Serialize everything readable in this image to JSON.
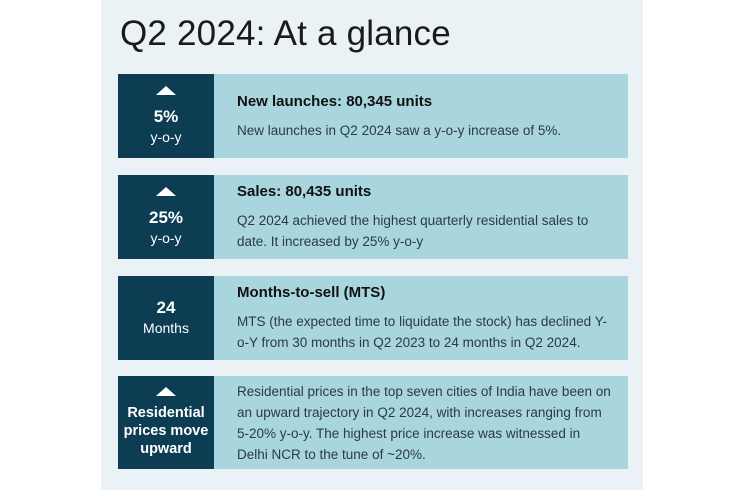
{
  "title": "Q2 2024: At a glance",
  "cards": [
    {
      "metric_value": "5%",
      "metric_unit": "y-o-y",
      "arrow_icon": "triangle-up-icon",
      "heading": "New launches: 80,345 units",
      "body": "New launches in Q2 2024 saw a y-o-y increase of 5%."
    },
    {
      "metric_value": "25%",
      "metric_unit": "y-o-y",
      "arrow_icon": "triangle-up-icon",
      "heading": "Sales: 80,435 units",
      "body": "Q2 2024 achieved the highest quarterly residential sales to date. It increased by 25% y-o-y"
    },
    {
      "metric_value": "24",
      "metric_unit": "Months",
      "heading": "Months-to-sell (MTS)",
      "body": "MTS (the expected time to liquidate the stock) has declined Y-o-Y from 30 months in Q2 2023 to 24 months in Q2 2024."
    },
    {
      "metric_text": "Residential prices move upward",
      "arrow_icon": "triangle-up-icon",
      "body": "Residential prices in the top seven cities of India have been on an upward trajectory in Q2 2024, with increases ranging from 5-20% y-o-y. The highest price increase was witnessed in Delhi NCR to the tune of ~20%."
    }
  ],
  "colors": {
    "panel_background": "#eaf2f6",
    "metric_background": "#0c3d53",
    "text_background": "#a9d5df"
  }
}
